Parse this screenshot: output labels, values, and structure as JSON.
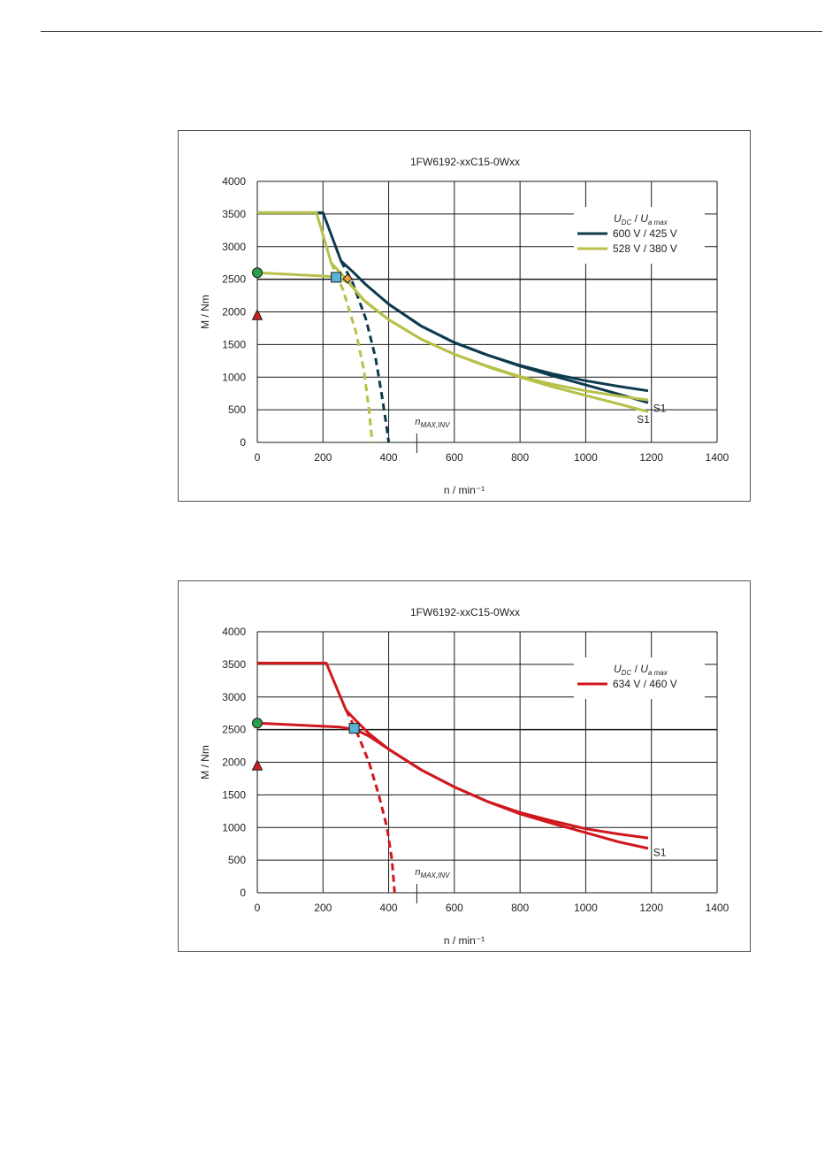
{
  "chart_data": [
    {
      "type": "line",
      "title": "1FW6192-xxC15-0Wxx",
      "xlabel": "n / min⁻¹",
      "ylabel": "M / Nm",
      "xlim": [
        0,
        1400
      ],
      "ylim": [
        0,
        4000
      ],
      "x_ticks": [
        0,
        200,
        400,
        600,
        800,
        1000,
        1200,
        1400
      ],
      "y_ticks": [
        0,
        500,
        1000,
        1500,
        2000,
        2500,
        3000,
        3500,
        4000
      ],
      "grid": true,
      "legend": {
        "placement": "top-right",
        "title_parts": [
          "U",
          "DC",
          " / ",
          "U",
          "a max"
        ],
        "entries": [
          {
            "label": "600 V / 425 V",
            "color": "#0d3b4e"
          },
          {
            "label": "528 V / 380 V",
            "color": "#b7c14a"
          }
        ]
      },
      "series": [
        {
          "color": "#0d3b4e",
          "style": "solid",
          "width": 3,
          "x": [
            0,
            200,
            255,
            290,
            330,
            400,
            500,
            600,
            700,
            800,
            900,
            1000,
            1100,
            1190
          ],
          "y": [
            3520,
            3520,
            2780,
            2620,
            2420,
            2120,
            1780,
            1530,
            1340,
            1180,
            1050,
            945,
            860,
            790
          ]
        },
        {
          "color": "#0d3b4e",
          "style": "solid",
          "width": 3,
          "x": [
            400,
            500,
            600,
            700,
            800,
            900,
            1000,
            1100,
            1190
          ],
          "y": [
            2120,
            1780,
            1530,
            1340,
            1170,
            1020,
            880,
            740,
            610
          ]
        },
        {
          "color": "#0d3b4e",
          "style": "dashed",
          "width": 3,
          "x": [
            255,
            290,
            330,
            360,
            380,
            395,
            400
          ],
          "y": [
            2780,
            2450,
            1900,
            1300,
            700,
            200,
            0
          ]
        },
        {
          "color": "#b7c14a",
          "style": "solid",
          "width": 3,
          "x": [
            0,
            180,
            225,
            260,
            320,
            400,
            500,
            600,
            700,
            800,
            900,
            1000,
            1100,
            1190
          ],
          "y": [
            3520,
            3520,
            2750,
            2560,
            2200,
            1880,
            1580,
            1350,
            1170,
            1010,
            890,
            790,
            710,
            650
          ]
        },
        {
          "color": "#b7c14a",
          "style": "solid",
          "width": 3,
          "x": [
            0,
            240,
            280,
            330,
            400,
            500,
            600,
            700,
            800,
            900,
            1000,
            1100,
            1190
          ],
          "y": [
            2600,
            2540,
            2440,
            2150,
            1880,
            1580,
            1350,
            1160,
            1000,
            850,
            720,
            590,
            470
          ]
        },
        {
          "color": "#b7c14a",
          "style": "dashed",
          "width": 3,
          "x": [
            225,
            260,
            300,
            325,
            340,
            350
          ],
          "y": [
            2750,
            2350,
            1700,
            1100,
            500,
            0
          ]
        }
      ],
      "markers": [
        {
          "shape": "circle",
          "x": 0,
          "y": 2600,
          "color": "#2e9e4a"
        },
        {
          "shape": "triangle",
          "x": 0,
          "y": 1950,
          "color": "#cc1f1f"
        },
        {
          "shape": "square",
          "x": 240,
          "y": 2530,
          "color": "#5ab3d6"
        },
        {
          "shape": "diamond",
          "x": 275,
          "y": 2510,
          "color": "#f2a23a"
        }
      ],
      "annotations": [
        {
          "text": "S1",
          "x": 1200,
          "y": 520
        },
        {
          "text": "S1",
          "x": 1150,
          "y": 350
        }
      ],
      "nmax": {
        "main": "n",
        "sub": "MAX,INV",
        "x": 545
      }
    },
    {
      "type": "line",
      "title": "1FW6192-xxC15-0Wxx",
      "xlabel": "n / min⁻¹",
      "ylabel": "M / Nm",
      "xlim": [
        0,
        1400
      ],
      "ylim": [
        0,
        4000
      ],
      "x_ticks": [
        0,
        200,
        400,
        600,
        800,
        1000,
        1200,
        1400
      ],
      "y_ticks": [
        0,
        500,
        1000,
        1500,
        2000,
        2500,
        3000,
        3500,
        4000
      ],
      "grid": true,
      "legend": {
        "placement": "top-right",
        "title_parts": [
          "U",
          "DC",
          " / ",
          "U",
          "a max"
        ],
        "entries": [
          {
            "label": "634 V / 460 V",
            "color": "#d0181d"
          }
        ]
      },
      "series": [
        {
          "color": "#d0181d",
          "style": "solid",
          "width": 3,
          "x": [
            0,
            210,
            270,
            300,
            340,
            400,
            500,
            600,
            700,
            800,
            900,
            1000,
            1100,
            1190
          ],
          "y": [
            3520,
            3520,
            2800,
            2640,
            2440,
            2200,
            1880,
            1620,
            1400,
            1230,
            1100,
            980,
            900,
            840
          ]
        },
        {
          "color": "#d0181d",
          "style": "solid",
          "width": 3,
          "x": [
            0,
            250,
            300,
            340,
            400,
            500,
            600,
            700,
            800,
            900,
            1000,
            1100,
            1190
          ],
          "y": [
            2600,
            2540,
            2500,
            2400,
            2200,
            1880,
            1620,
            1400,
            1210,
            1060,
            920,
            780,
            680
          ]
        },
        {
          "color": "#d0181d",
          "style": "dashed",
          "width": 3,
          "x": [
            270,
            300,
            340,
            370,
            395,
            410,
            418
          ],
          "y": [
            2800,
            2500,
            2000,
            1500,
            1000,
            500,
            0
          ]
        }
      ],
      "markers": [
        {
          "shape": "circle",
          "x": 0,
          "y": 2600,
          "color": "#2e9e4a"
        },
        {
          "shape": "triangle",
          "x": 0,
          "y": 1950,
          "color": "#cc1f1f"
        },
        {
          "shape": "square",
          "x": 295,
          "y": 2520,
          "color": "#5ab3d6"
        }
      ],
      "annotations": [
        {
          "text": "S1",
          "x": 1200,
          "y": 620
        }
      ],
      "nmax": {
        "main": "n",
        "sub": "MAX,INV",
        "x": 545
      }
    }
  ]
}
